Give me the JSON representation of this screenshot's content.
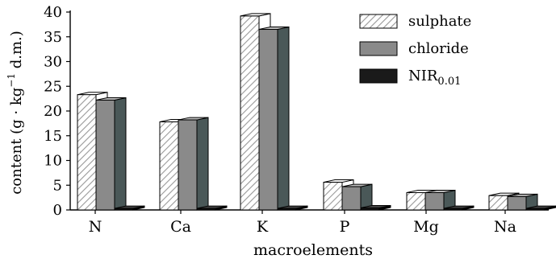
{
  "chart_data": {
    "type": "bar",
    "subtype": "3d-grouped",
    "categories": [
      "N",
      "Ca",
      "K",
      "P",
      "Mg",
      "Na"
    ],
    "series": [
      {
        "name": "sulphate",
        "values": [
          23.3,
          17.8,
          39.2,
          5.6,
          3.5,
          2.9
        ]
      },
      {
        "name": "chloride",
        "values": [
          22.2,
          18.2,
          36.5,
          4.7,
          3.5,
          2.7
        ]
      },
      {
        "name": "NIR0.01",
        "values": [
          0.3,
          0.3,
          0.3,
          0.4,
          0.3,
          0.3
        ]
      }
    ],
    "legend": {
      "entries": [
        "sulphate",
        "chloride",
        "NIR"
      ],
      "subscript": "0.01",
      "placement": "top-right"
    },
    "colors": {
      "sulphate": "#ffffff",
      "chloride": "#8a8a8a",
      "nir": "#1a1a1a"
    },
    "xlabel": "macroelements",
    "ylabel": {
      "main": "content (g · kg",
      "sup": "−1",
      "rest": " d.m.)"
    },
    "ylim": [
      0,
      40
    ],
    "yticks": [
      "0",
      "5",
      "10",
      "15",
      "20",
      "25",
      "30",
      "35",
      "40"
    ],
    "grid": false
  }
}
